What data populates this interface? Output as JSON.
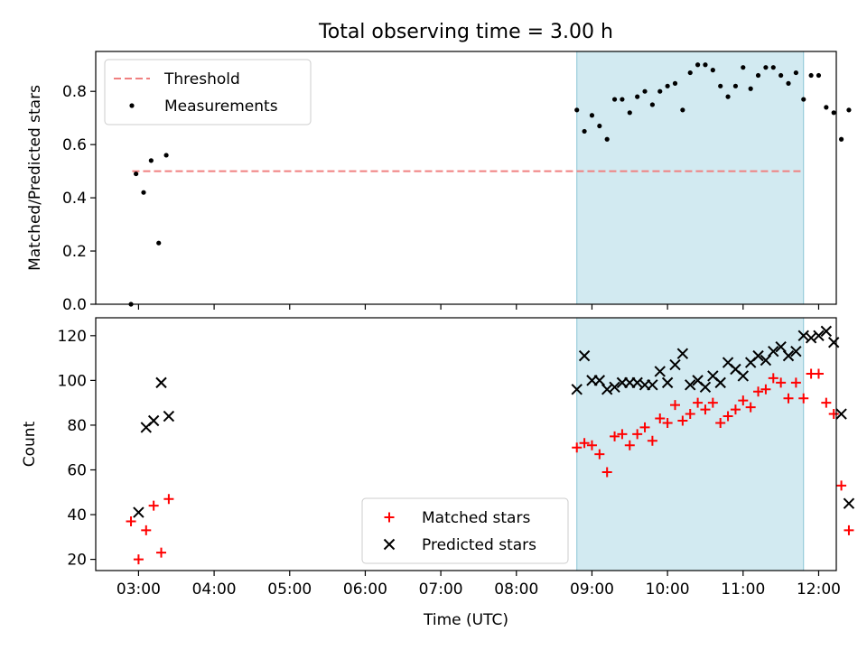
{
  "chart_data": {
    "title": "Total observing time = 3.00 h",
    "shaded_region": {
      "x_start": "08:48",
      "x_end": "11:48",
      "color": "#add8e6"
    },
    "xlabel": "Time (UTC)",
    "x_ticks": [
      "03:00",
      "04:00",
      "05:00",
      "06:00",
      "07:00",
      "08:00",
      "09:00",
      "10:00",
      "11:00",
      "12:00"
    ],
    "xlim": [
      "02:26",
      "12:14"
    ],
    "panels": [
      {
        "type": "scatter",
        "ylabel": "Matched/Predicted stars",
        "ylim": [
          0,
          0.95
        ],
        "y_ticks": [
          "0.0",
          "0.2",
          "0.4",
          "0.6",
          "0.8"
        ],
        "legend_position": "top-left",
        "threshold": {
          "name": "Threshold",
          "y": 0.5,
          "x_start": "02:55",
          "x_end": "11:48",
          "color": "#f08080"
        },
        "series": [
          {
            "name": "Measurements",
            "color": "#000000",
            "marker": "dot",
            "points": [
              [
                "02:54",
                0.0
              ],
              [
                "02:58",
                0.49
              ],
              [
                "03:04",
                0.42
              ],
              [
                "03:10",
                0.54
              ],
              [
                "03:16",
                0.23
              ],
              [
                "03:22",
                0.56
              ],
              [
                "08:48",
                0.73
              ],
              [
                "08:54",
                0.65
              ],
              [
                "09:00",
                0.71
              ],
              [
                "09:06",
                0.67
              ],
              [
                "09:12",
                0.62
              ],
              [
                "09:18",
                0.77
              ],
              [
                "09:24",
                0.77
              ],
              [
                "09:30",
                0.72
              ],
              [
                "09:36",
                0.78
              ],
              [
                "09:42",
                0.8
              ],
              [
                "09:48",
                0.75
              ],
              [
                "09:54",
                0.8
              ],
              [
                "10:00",
                0.82
              ],
              [
                "10:06",
                0.83
              ],
              [
                "10:12",
                0.73
              ],
              [
                "10:18",
                0.87
              ],
              [
                "10:24",
                0.9
              ],
              [
                "10:30",
                0.9
              ],
              [
                "10:36",
                0.88
              ],
              [
                "10:42",
                0.82
              ],
              [
                "10:48",
                0.78
              ],
              [
                "10:54",
                0.82
              ],
              [
                "11:00",
                0.89
              ],
              [
                "11:06",
                0.81
              ],
              [
                "11:12",
                0.86
              ],
              [
                "11:18",
                0.89
              ],
              [
                "11:24",
                0.89
              ],
              [
                "11:30",
                0.86
              ],
              [
                "11:36",
                0.83
              ],
              [
                "11:42",
                0.87
              ],
              [
                "11:48",
                0.77
              ],
              [
                "11:54",
                0.86
              ],
              [
                "12:00",
                0.86
              ],
              [
                "12:06",
                0.74
              ],
              [
                "12:12",
                0.72
              ],
              [
                "12:18",
                0.62
              ],
              [
                "12:24",
                0.73
              ]
            ]
          }
        ]
      },
      {
        "type": "scatter",
        "ylabel": "Count",
        "ylim": [
          15,
          128
        ],
        "y_ticks": [
          "20",
          "40",
          "60",
          "80",
          "100",
          "120"
        ],
        "legend_position": "lower-center",
        "series": [
          {
            "name": "Matched stars",
            "color": "#ff0000",
            "marker": "plus",
            "points": [
              [
                "02:54",
                37
              ],
              [
                "03:00",
                20
              ],
              [
                "03:06",
                33
              ],
              [
                "03:12",
                44
              ],
              [
                "03:18",
                23
              ],
              [
                "03:24",
                47
              ],
              [
                "08:48",
                70
              ],
              [
                "08:54",
                72
              ],
              [
                "09:00",
                71
              ],
              [
                "09:06",
                67
              ],
              [
                "09:12",
                59
              ],
              [
                "09:18",
                75
              ],
              [
                "09:24",
                76
              ],
              [
                "09:30",
                71
              ],
              [
                "09:36",
                76
              ],
              [
                "09:42",
                79
              ],
              [
                "09:48",
                73
              ],
              [
                "09:54",
                83
              ],
              [
                "10:00",
                81
              ],
              [
                "10:06",
                89
              ],
              [
                "10:12",
                82
              ],
              [
                "10:18",
                85
              ],
              [
                "10:24",
                90
              ],
              [
                "10:30",
                87
              ],
              [
                "10:36",
                90
              ],
              [
                "10:42",
                81
              ],
              [
                "10:48",
                84
              ],
              [
                "10:54",
                87
              ],
              [
                "11:00",
                91
              ],
              [
                "11:06",
                88
              ],
              [
                "11:12",
                95
              ],
              [
                "11:18",
                96
              ],
              [
                "11:24",
                101
              ],
              [
                "11:30",
                99
              ],
              [
                "11:36",
                92
              ],
              [
                "11:42",
                99
              ],
              [
                "11:48",
                92
              ],
              [
                "11:54",
                103
              ],
              [
                "12:00",
                103
              ],
              [
                "12:06",
                90
              ],
              [
                "12:12",
                85
              ],
              [
                "12:18",
                53
              ],
              [
                "12:24",
                33
              ]
            ]
          },
          {
            "name": "Predicted stars",
            "color": "#000000",
            "marker": "cross",
            "points": [
              [
                "03:00",
                41
              ],
              [
                "03:06",
                79
              ],
              [
                "03:12",
                82
              ],
              [
                "03:18",
                99
              ],
              [
                "03:24",
                84
              ],
              [
                "08:48",
                96
              ],
              [
                "08:54",
                111
              ],
              [
                "09:00",
                100
              ],
              [
                "09:06",
                100
              ],
              [
                "09:12",
                96
              ],
              [
                "09:18",
                97
              ],
              [
                "09:24",
                99
              ],
              [
                "09:30",
                99
              ],
              [
                "09:36",
                99
              ],
              [
                "09:42",
                98
              ],
              [
                "09:48",
                98
              ],
              [
                "09:54",
                104
              ],
              [
                "10:00",
                99
              ],
              [
                "10:06",
                107
              ],
              [
                "10:12",
                112
              ],
              [
                "10:18",
                98
              ],
              [
                "10:24",
                100
              ],
              [
                "10:30",
                97
              ],
              [
                "10:36",
                102
              ],
              [
                "10:42",
                99
              ],
              [
                "10:48",
                108
              ],
              [
                "10:54",
                105
              ],
              [
                "11:00",
                102
              ],
              [
                "11:06",
                108
              ],
              [
                "11:12",
                111
              ],
              [
                "11:18",
                109
              ],
              [
                "11:24",
                113
              ],
              [
                "11:30",
                115
              ],
              [
                "11:36",
                111
              ],
              [
                "11:42",
                113
              ],
              [
                "11:48",
                120
              ],
              [
                "11:54",
                119
              ],
              [
                "12:00",
                120
              ],
              [
                "12:06",
                122
              ],
              [
                "12:12",
                117
              ],
              [
                "12:18",
                85
              ],
              [
                "12:24",
                45
              ]
            ]
          }
        ]
      }
    ]
  }
}
